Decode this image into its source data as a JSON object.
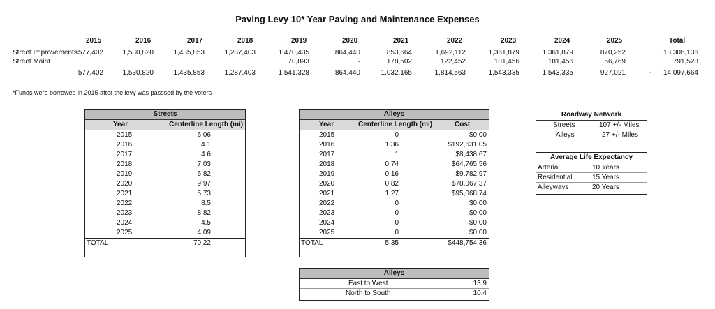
{
  "title": "Paving Levy 10* Year Paving and Maintenance Expenses",
  "summary": {
    "years": [
      "2015",
      "2016",
      "2017",
      "2018",
      "2019",
      "2020",
      "2021",
      "2022",
      "2023",
      "2024",
      "2025"
    ],
    "total_label": "Total",
    "street_improvements": {
      "label": "Street Improvements",
      "values": [
        "577,402",
        "1,530,820",
        "1,435,853",
        "1,287,403",
        "1,470,435",
        "864,440",
        "853,664",
        "1,692,112",
        "1,361,879",
        "1,361,879",
        "870,252"
      ],
      "total": "13,306,136"
    },
    "street_maint": {
      "label": "Street Maint",
      "values": [
        "",
        "",
        "",
        "",
        "70,893",
        "-",
        "178,502",
        "122,452",
        "181,456",
        "181,456",
        "56,769"
      ],
      "total": "791,528"
    },
    "totals": {
      "values": [
        "577,402",
        "1,530,820",
        "1,435,853",
        "1,287,403",
        "1,541,328",
        "864,440",
        "1,032,165",
        "1,814,563",
        "1,543,335",
        "1,543,335",
        "927,021"
      ],
      "dash": "-",
      "total": "14,097,664"
    }
  },
  "note": "*Funds were borrowed in 2015 after the levy was passsed by the voters",
  "streets": {
    "title": "Streets",
    "col_year": "Year",
    "col_length": "Centerline Length (mi)",
    "rows": [
      {
        "year": "2015",
        "length": "6.06"
      },
      {
        "year": "2016",
        "length": "4.1"
      },
      {
        "year": "2017",
        "length": "4.6"
      },
      {
        "year": "2018",
        "length": "7.03"
      },
      {
        "year": "2019",
        "length": "6.82"
      },
      {
        "year": "2020",
        "length": "9.97"
      },
      {
        "year": "2021",
        "length": "5.73"
      },
      {
        "year": "2022",
        "length": "8.5"
      },
      {
        "year": "2023",
        "length": "8.82"
      },
      {
        "year": "2024",
        "length": "4.5"
      },
      {
        "year": "2025",
        "length": "4.09"
      }
    ],
    "total_label": "TOTAL",
    "total_length": "70.22"
  },
  "alleys": {
    "title": "Alleys",
    "col_year": "Year",
    "col_length": "Centerline Length (mi)",
    "col_cost": "Cost",
    "rows": [
      {
        "year": "2015",
        "length": "0",
        "cost": "$0.00"
      },
      {
        "year": "2016",
        "length": "1.36",
        "cost": "$192,631.05"
      },
      {
        "year": "2017",
        "length": "1",
        "cost": "$8,438.67"
      },
      {
        "year": "2018",
        "length": "0.74",
        "cost": "$64,765.56"
      },
      {
        "year": "2019",
        "length": "0.16",
        "cost": "$9,782.97"
      },
      {
        "year": "2020",
        "length": "0.82",
        "cost": "$78,067.37"
      },
      {
        "year": "2021",
        "length": "1.27",
        "cost": "$95,068.74"
      },
      {
        "year": "2022",
        "length": "0",
        "cost": "$0.00"
      },
      {
        "year": "2023",
        "length": "0",
        "cost": "$0.00"
      },
      {
        "year": "2024",
        "length": "0",
        "cost": "$0.00"
      },
      {
        "year": "2025",
        "length": "0",
        "cost": "$0.00"
      }
    ],
    "total_label": "TOTAL",
    "total_length": "5.35",
    "total_cost": "$448,754.36"
  },
  "alley_directions": {
    "title": "Alleys",
    "rows": [
      {
        "label": "East to West",
        "value": "13.9"
      },
      {
        "label": "North to South",
        "value": "10.4"
      }
    ]
  },
  "roadway_network": {
    "title": "Roadway Network",
    "rows": [
      {
        "label": "Streets",
        "value": "107 +/- Miles"
      },
      {
        "label": "Alleys",
        "value": "27 +/- Miles"
      }
    ]
  },
  "life_expectancy": {
    "title": "Average Life Expectancy",
    "rows": [
      {
        "label": "Arterial",
        "value": "10 Years"
      },
      {
        "label": "Residential",
        "value": "15 Years"
      },
      {
        "label": "Alleyways",
        "value": "20 Years"
      }
    ]
  }
}
